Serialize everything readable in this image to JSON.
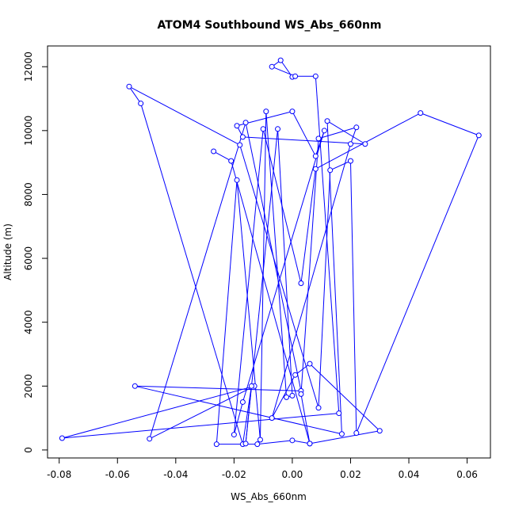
{
  "chart_data": {
    "type": "line",
    "title": "ATOM4 Southbound WS_Abs_660nm",
    "xlabel": "WS_Abs_660nm",
    "ylabel": "Altitude (m)",
    "xlim": [
      -0.084,
      0.068
    ],
    "ylim": [
      -250,
      12650
    ],
    "x_ticks": [
      -0.08,
      -0.06,
      -0.04,
      -0.02,
      0.0,
      0.02,
      0.04,
      0.06
    ],
    "x_tick_labels": [
      "-0.08",
      "-0.06",
      "-0.04",
      "-0.02",
      "0.00",
      "0.02",
      "0.04",
      "0.06"
    ],
    "y_ticks": [
      0,
      2000,
      4000,
      6000,
      8000,
      10000,
      12000
    ],
    "y_tick_labels": [
      "0",
      "2000",
      "4000",
      "6000",
      "8000",
      "10000",
      "12000"
    ],
    "grid": false,
    "series_color": "#0000ff",
    "markers": "open-circle",
    "x": [
      0.0,
      -0.004,
      -0.007,
      0.001,
      0.008,
      0.016,
      -0.079,
      -0.013,
      -0.049,
      -0.016,
      0.003,
      -0.054,
      0.017,
      0.012,
      0.025,
      -0.017,
      -0.019,
      0.0,
      0.008,
      0.011,
      -0.017,
      -0.02,
      -0.01,
      0.003,
      0.008,
      0.044,
      0.064,
      0.022,
      0.02,
      0.013,
      0.009,
      -0.018,
      -0.056,
      -0.052,
      -0.017,
      -0.014,
      -0.016,
      -0.005,
      0.0,
      -0.002,
      -0.009,
      -0.011,
      -0.019,
      -0.026,
      -0.012,
      0.0,
      0.006,
      0.03,
      0.006,
      0.001,
      -0.007,
      0.02,
      0.022,
      0.009,
      0.003,
      0.006,
      -0.021,
      -0.027
    ],
    "y": [
      11680,
      12200,
      12000,
      11700,
      11700,
      1150,
      370,
      2000,
      350,
      10250,
      1850,
      2000,
      500,
      10300,
      9580,
      9800,
      10150,
      10600,
      9200,
      10000,
      1500,
      480,
      10050,
      5220,
      8800,
      10550,
      9850,
      530,
      9050,
      8760,
      1320,
      9550,
      11380,
      10850,
      180,
      2000,
      200,
      10050,
      1700,
      1650,
      10600,
      320,
      8450,
      180,
      180,
      300,
      200,
      600,
      2700,
      2350,
      1000,
      9580,
      10100,
      9750,
      1750,
      200,
      9050,
      9350
    ]
  }
}
